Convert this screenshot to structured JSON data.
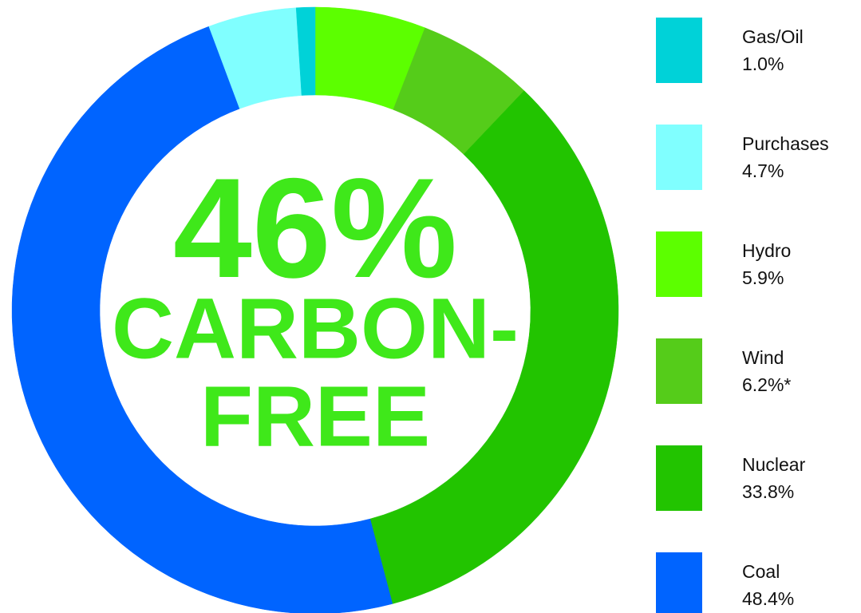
{
  "chart_data": {
    "type": "donut",
    "center_text": [
      "46%",
      "CARBON-",
      "FREE"
    ],
    "center_color": "#3fe81a",
    "categories": [
      "Gas/Oil",
      "Purchases",
      "Hydro",
      "Wind",
      "Nuclear",
      "Coal"
    ],
    "values": [
      1.0,
      4.7,
      5.9,
      6.2,
      33.8,
      48.4
    ],
    "value_labels": [
      "1.0%",
      "4.7%",
      "5.9%",
      "6.2%*",
      "33.8%",
      "48.4%"
    ],
    "colors": [
      "#00d2d8",
      "#80ffff",
      "#5cff00",
      "#55cc1a",
      "#22c400",
      "#0064ff"
    ]
  }
}
